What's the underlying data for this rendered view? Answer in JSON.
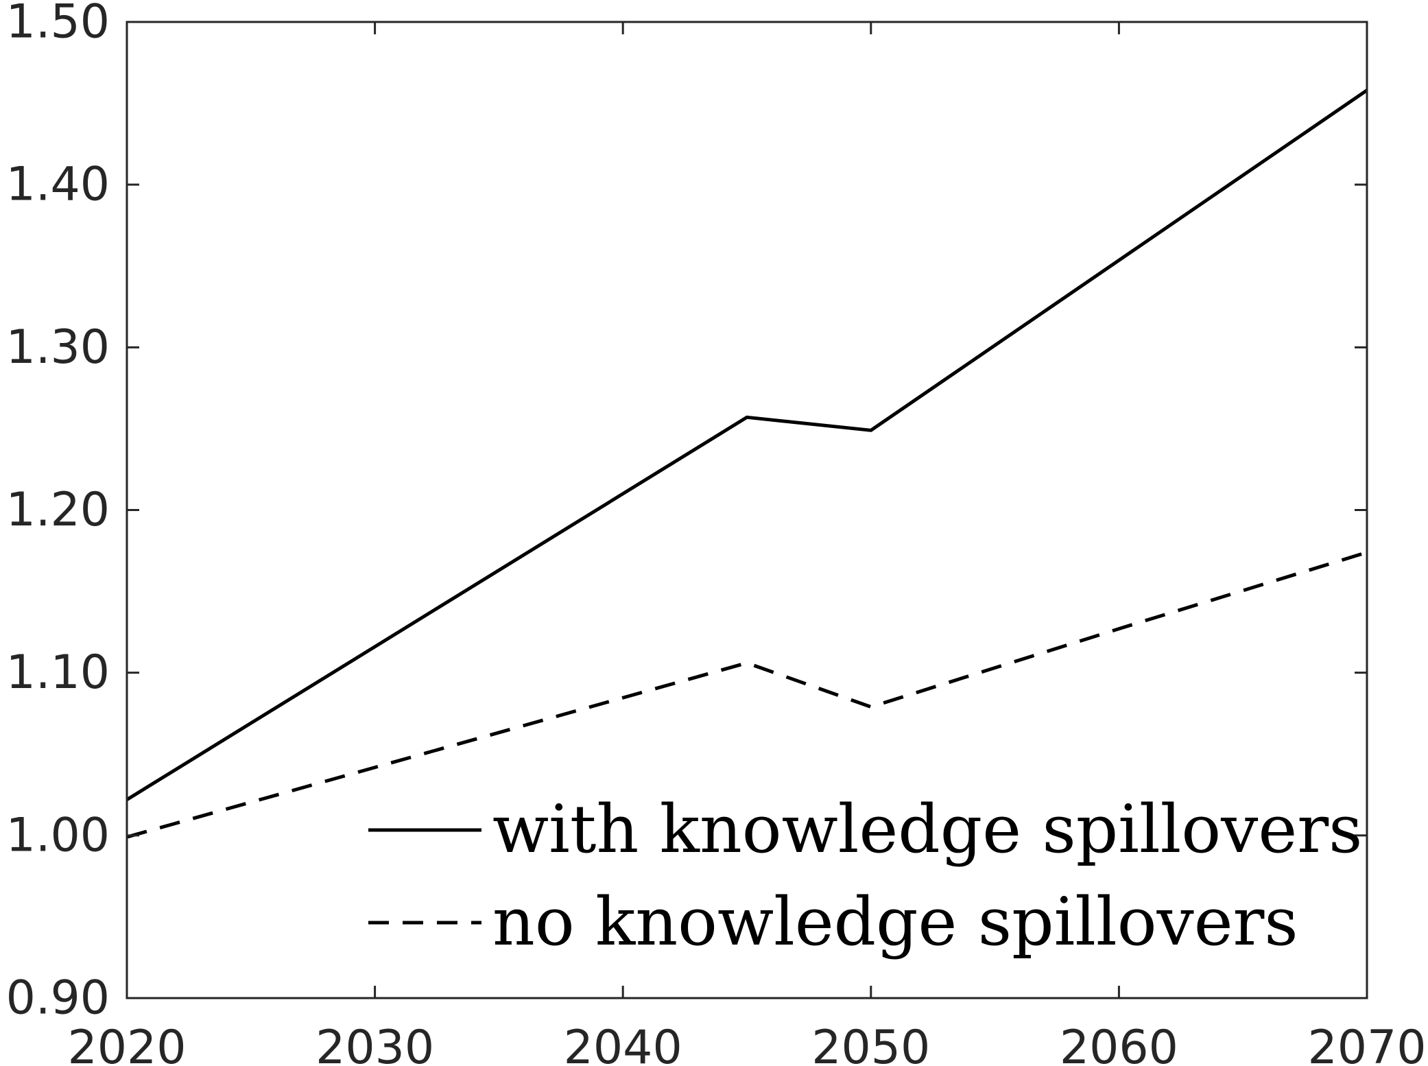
{
  "chart_data": {
    "type": "line",
    "title": "",
    "xlabel": "",
    "ylabel": "",
    "xlim": [
      2020,
      2070
    ],
    "ylim": [
      0.9,
      1.5
    ],
    "xticks": [
      "2020",
      "2030",
      "2040",
      "2050",
      "2060",
      "2070"
    ],
    "yticks": [
      "0.90",
      "1.00",
      "1.10",
      "1.20",
      "1.30",
      "1.40",
      "1.50"
    ],
    "grid": false,
    "legend_position": "bottom-right",
    "series": [
      {
        "name": "with knowledge spillovers",
        "style": "solid",
        "color": "#000000",
        "x": [
          2020,
          2045,
          2050,
          2070
        ],
        "y": [
          1.022,
          1.257,
          1.249,
          1.458
        ]
      },
      {
        "name": "no knowledge spillovers",
        "style": "dashed",
        "color": "#000000",
        "x": [
          2020,
          2045,
          2050,
          2060,
          2070
        ],
        "y": [
          0.999,
          1.106,
          1.079,
          1.127,
          1.174
        ]
      }
    ]
  }
}
